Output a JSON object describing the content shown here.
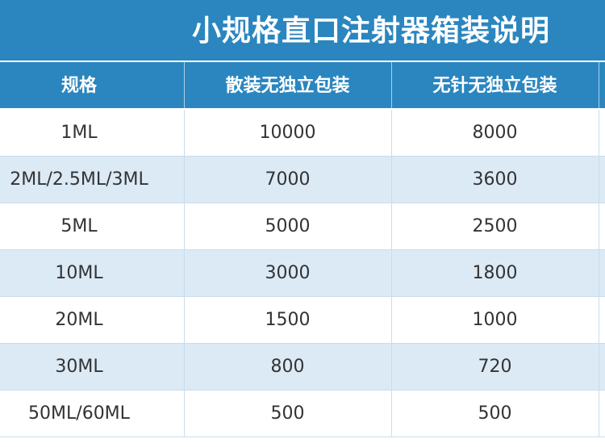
{
  "title": "小规格直口注射器箱装说明",
  "table": {
    "headers": [
      "规格",
      "散装无独立包装",
      "无针无独立包装"
    ],
    "rows": [
      [
        "1ML",
        "10000",
        "8000"
      ],
      [
        "2ML/2.5ML/3ML",
        "7000",
        "3600"
      ],
      [
        "5ML",
        "5000",
        "2500"
      ],
      [
        "10ML",
        "3000",
        "1800"
      ],
      [
        "20ML",
        "1500",
        "1000"
      ],
      [
        "30ML",
        "800",
        "720"
      ],
      [
        "50ML/60ML",
        "500",
        "500"
      ]
    ]
  },
  "colors": {
    "header_bg": "#2b86bf",
    "stripe_bg": "#dceaf6",
    "text": "#333333"
  }
}
